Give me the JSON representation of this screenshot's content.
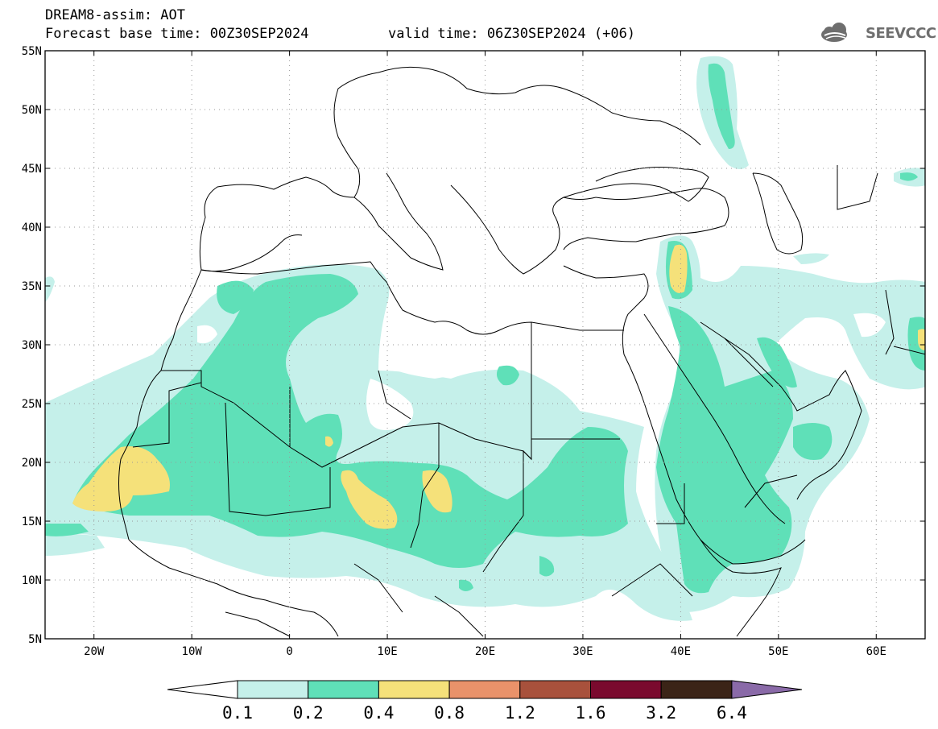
{
  "header": {
    "title_line1": "DREAM8-assim: AOT",
    "base_time": "Forecast base time: 00Z30SEP2024",
    "valid_time": "valid time: 06Z30SEP2024 (+06)"
  },
  "logo": {
    "text": "SEEVCCC",
    "icon": "cloud-logo-icon"
  },
  "map": {
    "lon_range": [
      -25,
      65
    ],
    "lat_range": [
      5,
      55
    ],
    "lat_ticks": [
      {
        "value": 55,
        "label": "55N"
      },
      {
        "value": 50,
        "label": "50N"
      },
      {
        "value": 45,
        "label": "45N"
      },
      {
        "value": 40,
        "label": "40N"
      },
      {
        "value": 35,
        "label": "35N"
      },
      {
        "value": 30,
        "label": "30N"
      },
      {
        "value": 25,
        "label": "25N"
      },
      {
        "value": 20,
        "label": "20N"
      },
      {
        "value": 15,
        "label": "15N"
      },
      {
        "value": 10,
        "label": "10N"
      },
      {
        "value": 5,
        "label": "5N"
      }
    ],
    "lon_ticks": [
      {
        "value": -20,
        "label": "20W"
      },
      {
        "value": -10,
        "label": "10W"
      },
      {
        "value": 0,
        "label": "0"
      },
      {
        "value": 10,
        "label": "10E"
      },
      {
        "value": 20,
        "label": "20E"
      },
      {
        "value": 30,
        "label": "30E"
      },
      {
        "value": 40,
        "label": "40E"
      },
      {
        "value": 50,
        "label": "50E"
      },
      {
        "value": 60,
        "label": "60E"
      }
    ],
    "grid": "dotted"
  },
  "colorbar": {
    "levels": [
      "0.1",
      "0.2",
      "0.4",
      "0.8",
      "1.2",
      "1.6",
      "3.2",
      "6.4"
    ],
    "colors": [
      "#ffffff",
      "#c5f0ea",
      "#5fe0b8",
      "#f5e17a",
      "#e9926a",
      "#a8513c",
      "#7a0a2e",
      "#3b2417",
      "#8a6aa8"
    ]
  },
  "colors": {
    "low": "#c5f0ea",
    "mid": "#5fe0b8",
    "high": "#f5e17a"
  }
}
